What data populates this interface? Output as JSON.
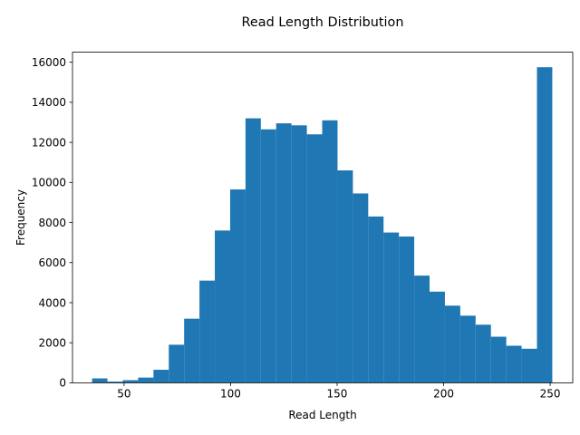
{
  "chart_data": {
    "type": "histogram",
    "title": "Read Length Distribution",
    "xlabel": "Read Length",
    "ylabel": "Frequency",
    "xlim": [
      25.8,
      260.6
    ],
    "ylim": [
      0,
      16500
    ],
    "xticks": [
      50,
      100,
      150,
      200,
      250
    ],
    "yticks": [
      0,
      2000,
      4000,
      6000,
      8000,
      10000,
      12000,
      14000,
      16000
    ],
    "bar_color": "#1f77b4",
    "grid": false,
    "bins": [
      {
        "x0": 35.0,
        "x1": 42.2,
        "count": 220
      },
      {
        "x0": 42.2,
        "x1": 49.4,
        "count": 60
      },
      {
        "x0": 49.4,
        "x1": 56.6,
        "count": 130
      },
      {
        "x0": 56.6,
        "x1": 63.8,
        "count": 260
      },
      {
        "x0": 63.8,
        "x1": 71.0,
        "count": 650
      },
      {
        "x0": 71.0,
        "x1": 78.2,
        "count": 1900
      },
      {
        "x0": 78.2,
        "x1": 85.4,
        "count": 3200
      },
      {
        "x0": 85.4,
        "x1": 92.6,
        "count": 5100
      },
      {
        "x0": 92.6,
        "x1": 99.8,
        "count": 7600
      },
      {
        "x0": 99.8,
        "x1": 107.0,
        "count": 9650
      },
      {
        "x0": 107.0,
        "x1": 114.2,
        "count": 13200
      },
      {
        "x0": 114.2,
        "x1": 121.4,
        "count": 12650
      },
      {
        "x0": 121.4,
        "x1": 128.6,
        "count": 12950
      },
      {
        "x0": 128.6,
        "x1": 135.8,
        "count": 12850
      },
      {
        "x0": 135.8,
        "x1": 143.0,
        "count": 12400
      },
      {
        "x0": 143.0,
        "x1": 150.2,
        "count": 13100
      },
      {
        "x0": 150.2,
        "x1": 157.4,
        "count": 10600
      },
      {
        "x0": 157.4,
        "x1": 164.6,
        "count": 9450
      },
      {
        "x0": 164.6,
        "x1": 171.8,
        "count": 8300
      },
      {
        "x0": 171.8,
        "x1": 179.0,
        "count": 7500
      },
      {
        "x0": 179.0,
        "x1": 186.2,
        "count": 7300
      },
      {
        "x0": 186.2,
        "x1": 193.4,
        "count": 5350
      },
      {
        "x0": 193.4,
        "x1": 200.6,
        "count": 4550
      },
      {
        "x0": 200.6,
        "x1": 207.8,
        "count": 3850
      },
      {
        "x0": 207.8,
        "x1": 215.0,
        "count": 3350
      },
      {
        "x0": 215.0,
        "x1": 222.2,
        "count": 2900
      },
      {
        "x0": 222.2,
        "x1": 229.4,
        "count": 2300
      },
      {
        "x0": 229.4,
        "x1": 236.6,
        "count": 1850
      },
      {
        "x0": 236.6,
        "x1": 243.8,
        "count": 1700
      },
      {
        "x0": 243.8,
        "x1": 251.0,
        "count": 15750
      }
    ]
  }
}
